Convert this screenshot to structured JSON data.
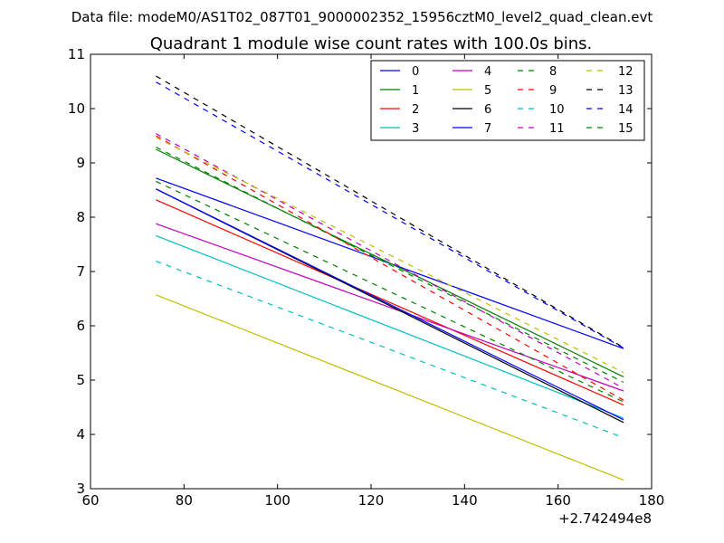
{
  "chart_data": {
    "type": "line",
    "suptitle": "Data file: modeM0/AS1T02_087T01_9000002352_15956cztM0_level2_quad_clean.evt",
    "title": "Quadrant 1 module wise count rates with 100.0s bins.",
    "xlabel": "",
    "ylabel": "",
    "x_offset_label": "+2.742494e8",
    "xlim": [
      60,
      180
    ],
    "ylim": [
      3,
      11
    ],
    "xticks": [
      "60",
      "80",
      "100",
      "120",
      "140",
      "160",
      "180"
    ],
    "yticks": [
      "3",
      "4",
      "5",
      "6",
      "7",
      "8",
      "9",
      "10",
      "11"
    ],
    "legend_position": "top-right",
    "x": [
      74,
      174
    ],
    "series": [
      {
        "name": "0",
        "color": "#0000ff",
        "dash": "solid",
        "values": [
          8.72,
          5.58
        ]
      },
      {
        "name": "1",
        "color": "#008000",
        "dash": "solid",
        "values": [
          9.25,
          5.06
        ]
      },
      {
        "name": "2",
        "color": "#ff0000",
        "dash": "solid",
        "values": [
          8.32,
          4.54
        ]
      },
      {
        "name": "3",
        "color": "#00bfbf",
        "dash": "solid",
        "values": [
          7.66,
          4.3
        ]
      },
      {
        "name": "4",
        "color": "#bf00bf",
        "dash": "solid",
        "values": [
          7.88,
          4.8
        ]
      },
      {
        "name": "5",
        "color": "#bfbf00",
        "dash": "solid",
        "values": [
          6.57,
          3.16
        ]
      },
      {
        "name": "6",
        "color": "#000000",
        "dash": "solid",
        "values": [
          8.52,
          4.22
        ]
      },
      {
        "name": "7",
        "color": "#0000ff",
        "dash": "solid",
        "values": [
          8.52,
          4.27
        ]
      },
      {
        "name": "8",
        "color": "#008000",
        "dash": "dashed",
        "values": [
          8.66,
          4.6
        ]
      },
      {
        "name": "9",
        "color": "#ff0000",
        "dash": "dashed",
        "values": [
          9.5,
          4.63
        ]
      },
      {
        "name": "10",
        "color": "#00bfbf",
        "dash": "dashed",
        "values": [
          7.19,
          3.94
        ]
      },
      {
        "name": "11",
        "color": "#bf00bf",
        "dash": "dashed",
        "values": [
          9.54,
          4.85
        ]
      },
      {
        "name": "12",
        "color": "#bfbf00",
        "dash": "dashed",
        "values": [
          9.47,
          5.14
        ]
      },
      {
        "name": "13",
        "color": "#000000",
        "dash": "dashed",
        "values": [
          10.6,
          5.6
        ]
      },
      {
        "name": "14",
        "color": "#0000ff",
        "dash": "dashed",
        "values": [
          10.49,
          5.59
        ]
      },
      {
        "name": "15",
        "color": "#008000",
        "dash": "dashed",
        "values": [
          9.29,
          4.96
        ]
      }
    ]
  }
}
